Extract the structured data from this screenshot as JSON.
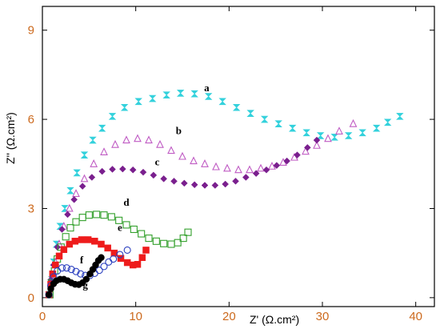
{
  "chart_data": {
    "type": "scatter",
    "title": "",
    "xlabel": "Z' (Ω.cm²)",
    "ylabel": "Z'' (Ω.cm²)",
    "xlim": [
      0,
      42
    ],
    "ylim": [
      -0.3,
      9.8
    ],
    "x_ticks": [
      0,
      10,
      20,
      30,
      40
    ],
    "y_ticks": [
      0,
      3,
      6,
      9
    ],
    "grid": false,
    "tick_color": "#cc6a1e",
    "series": [
      {
        "label": "a",
        "marker": "hourglass",
        "color": "#33d1dc",
        "label_at": [
          17.6,
          6.95
        ],
        "points": [
          [
            0.8,
            0.1
          ],
          [
            1.0,
            0.6
          ],
          [
            1.2,
            1.2
          ],
          [
            1.5,
            1.8
          ],
          [
            1.9,
            2.4
          ],
          [
            2.4,
            3.0
          ],
          [
            3.0,
            3.6
          ],
          [
            3.7,
            4.2
          ],
          [
            4.5,
            4.8
          ],
          [
            5.4,
            5.3
          ],
          [
            6.4,
            5.7
          ],
          [
            7.5,
            6.1
          ],
          [
            8.8,
            6.4
          ],
          [
            10.3,
            6.6
          ],
          [
            11.8,
            6.7
          ],
          [
            13.3,
            6.82
          ],
          [
            14.8,
            6.88
          ],
          [
            16.3,
            6.86
          ],
          [
            17.8,
            6.77
          ],
          [
            19.3,
            6.6
          ],
          [
            20.8,
            6.4
          ],
          [
            22.3,
            6.2
          ],
          [
            23.8,
            6.0
          ],
          [
            25.3,
            5.85
          ],
          [
            26.8,
            5.7
          ],
          [
            28.3,
            5.55
          ],
          [
            29.8,
            5.45
          ],
          [
            31.3,
            5.4
          ],
          [
            32.8,
            5.45
          ],
          [
            34.3,
            5.55
          ],
          [
            35.8,
            5.7
          ],
          [
            37.0,
            5.9
          ],
          [
            38.3,
            6.1
          ]
        ]
      },
      {
        "label": "b",
        "marker": "triangle-open",
        "color": "#c05cc4",
        "label_at": [
          14.6,
          5.5
        ],
        "points": [
          [
            0.8,
            0.1
          ],
          [
            1.1,
            0.6
          ],
          [
            1.4,
            1.2
          ],
          [
            1.8,
            1.8
          ],
          [
            2.3,
            2.4
          ],
          [
            2.9,
            3.0
          ],
          [
            3.6,
            3.5
          ],
          [
            4.5,
            4.0
          ],
          [
            5.5,
            4.5
          ],
          [
            6.6,
            4.9
          ],
          [
            7.8,
            5.15
          ],
          [
            9.0,
            5.3
          ],
          [
            10.2,
            5.35
          ],
          [
            11.4,
            5.3
          ],
          [
            12.6,
            5.15
          ],
          [
            13.8,
            4.95
          ],
          [
            15.0,
            4.75
          ],
          [
            16.2,
            4.6
          ],
          [
            17.4,
            4.5
          ],
          [
            18.6,
            4.4
          ],
          [
            19.8,
            4.35
          ],
          [
            21.0,
            4.3
          ],
          [
            22.2,
            4.3
          ],
          [
            23.4,
            4.35
          ],
          [
            24.6,
            4.42
          ],
          [
            25.8,
            4.55
          ],
          [
            27.0,
            4.72
          ],
          [
            28.2,
            4.92
          ],
          [
            29.4,
            5.12
          ],
          [
            30.6,
            5.35
          ],
          [
            31.8,
            5.6
          ],
          [
            33.3,
            5.85
          ]
        ]
      },
      {
        "label": "c",
        "marker": "diamond",
        "color": "#7a1f8e",
        "label_at": [
          12.3,
          4.45
        ],
        "points": [
          [
            0.7,
            0.1
          ],
          [
            0.9,
            0.6
          ],
          [
            1.2,
            1.1
          ],
          [
            1.6,
            1.7
          ],
          [
            2.1,
            2.3
          ],
          [
            2.7,
            2.8
          ],
          [
            3.4,
            3.3
          ],
          [
            4.3,
            3.75
          ],
          [
            5.3,
            4.05
          ],
          [
            6.4,
            4.25
          ],
          [
            7.5,
            4.32
          ],
          [
            8.6,
            4.33
          ],
          [
            9.7,
            4.3
          ],
          [
            10.8,
            4.22
          ],
          [
            11.9,
            4.12
          ],
          [
            13.0,
            4.0
          ],
          [
            14.1,
            3.92
          ],
          [
            15.2,
            3.85
          ],
          [
            16.3,
            3.8
          ],
          [
            17.4,
            3.78
          ],
          [
            18.5,
            3.78
          ],
          [
            19.6,
            3.82
          ],
          [
            20.7,
            3.92
          ],
          [
            21.8,
            4.05
          ],
          [
            22.9,
            4.18
          ],
          [
            24.0,
            4.3
          ],
          [
            25.1,
            4.45
          ],
          [
            26.2,
            4.6
          ],
          [
            27.3,
            4.8
          ],
          [
            28.4,
            5.05
          ],
          [
            29.4,
            5.3
          ]
        ]
      },
      {
        "label": "d",
        "marker": "square-open",
        "color": "#33a02c",
        "label_at": [
          9.0,
          3.1
        ],
        "points": [
          [
            0.8,
            0.1
          ],
          [
            1.0,
            0.5
          ],
          [
            1.3,
            0.9
          ],
          [
            1.6,
            1.3
          ],
          [
            2.0,
            1.7
          ],
          [
            2.5,
            2.05
          ],
          [
            3.0,
            2.35
          ],
          [
            3.6,
            2.55
          ],
          [
            4.3,
            2.7
          ],
          [
            5.0,
            2.78
          ],
          [
            5.8,
            2.8
          ],
          [
            6.6,
            2.78
          ],
          [
            7.4,
            2.72
          ],
          [
            8.2,
            2.6
          ],
          [
            9.0,
            2.45
          ],
          [
            9.8,
            2.3
          ],
          [
            10.6,
            2.15
          ],
          [
            11.4,
            2.0
          ],
          [
            12.2,
            1.9
          ],
          [
            13.0,
            1.82
          ],
          [
            13.8,
            1.8
          ],
          [
            14.5,
            1.85
          ],
          [
            15.1,
            2.0
          ],
          [
            15.6,
            2.2
          ]
        ]
      },
      {
        "label": "e",
        "marker": "square-filled",
        "color": "#ee1c1c",
        "label_at": [
          8.3,
          2.25
        ],
        "points": [
          [
            0.7,
            0.1
          ],
          [
            0.9,
            0.45
          ],
          [
            1.1,
            0.8
          ],
          [
            1.4,
            1.1
          ],
          [
            1.8,
            1.4
          ],
          [
            2.3,
            1.62
          ],
          [
            2.9,
            1.8
          ],
          [
            3.5,
            1.9
          ],
          [
            4.2,
            1.95
          ],
          [
            4.9,
            1.95
          ],
          [
            5.6,
            1.9
          ],
          [
            6.3,
            1.8
          ],
          [
            7.0,
            1.67
          ],
          [
            7.7,
            1.5
          ],
          [
            8.4,
            1.32
          ],
          [
            9.1,
            1.18
          ],
          [
            9.7,
            1.1
          ],
          [
            10.2,
            1.12
          ],
          [
            10.7,
            1.35
          ],
          [
            11.1,
            1.6
          ]
        ]
      },
      {
        "label": "f",
        "marker": "circle-open",
        "color": "#2a3fbf",
        "label_at": [
          4.2,
          1.15
        ],
        "points": [
          [
            0.7,
            0.1
          ],
          [
            0.9,
            0.4
          ],
          [
            1.2,
            0.7
          ],
          [
            1.6,
            0.9
          ],
          [
            2.1,
            1.0
          ],
          [
            2.6,
            1.0
          ],
          [
            3.1,
            0.95
          ],
          [
            3.6,
            0.88
          ],
          [
            4.1,
            0.8
          ],
          [
            4.6,
            0.75
          ],
          [
            5.1,
            0.75
          ],
          [
            5.6,
            0.82
          ],
          [
            6.1,
            0.92
          ],
          [
            6.6,
            1.05
          ],
          [
            7.1,
            1.2
          ],
          [
            7.6,
            1.3
          ],
          [
            8.3,
            1.45
          ],
          [
            9.1,
            1.6
          ]
        ]
      },
      {
        "label": "g",
        "marker": "circle-filled",
        "color": "#000000",
        "label_at": [
          4.6,
          0.3
        ],
        "points": [
          [
            0.7,
            0.1
          ],
          [
            0.9,
            0.3
          ],
          [
            1.2,
            0.47
          ],
          [
            1.5,
            0.57
          ],
          [
            1.9,
            0.62
          ],
          [
            2.3,
            0.62
          ],
          [
            2.7,
            0.57
          ],
          [
            3.1,
            0.5
          ],
          [
            3.5,
            0.45
          ],
          [
            3.9,
            0.44
          ],
          [
            4.3,
            0.5
          ],
          [
            4.7,
            0.62
          ],
          [
            5.1,
            0.8
          ],
          [
            5.4,
            0.95
          ],
          [
            5.7,
            1.1
          ],
          [
            6.0,
            1.25
          ],
          [
            6.3,
            1.35
          ]
        ]
      }
    ]
  }
}
